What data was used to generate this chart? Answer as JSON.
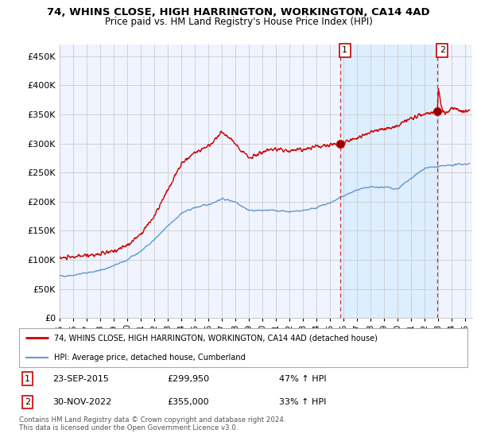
{
  "title": "74, WHINS CLOSE, HIGH HARRINGTON, WORKINGTON, CA14 4AD",
  "subtitle": "Price paid vs. HM Land Registry's House Price Index (HPI)",
  "ylim": [
    0,
    470000
  ],
  "yticks": [
    0,
    50000,
    100000,
    150000,
    200000,
    250000,
    300000,
    350000,
    400000,
    450000
  ],
  "xlim_start": 1995.0,
  "xlim_end": 2025.5,
  "legend_line1": "74, WHINS CLOSE, HIGH HARRINGTON, WORKINGTON, CA14 4AD (detached house)",
  "legend_line2": "HPI: Average price, detached house, Cumberland",
  "annotation1_date": "23-SEP-2015",
  "annotation1_price": "£299,950",
  "annotation1_pct": "47% ↑ HPI",
  "annotation2_date": "30-NOV-2022",
  "annotation2_price": "£355,000",
  "annotation2_pct": "33% ↑ HPI",
  "footer": "Contains HM Land Registry data © Crown copyright and database right 2024.\nThis data is licensed under the Open Government Licence v3.0.",
  "sale1_x": 2015.73,
  "sale1_y": 299950,
  "sale2_x": 2022.92,
  "sale2_y": 355000,
  "red_color": "#cc0000",
  "blue_color": "#6699cc",
  "shade_color": "#ddeeff",
  "dashed_color": "#cc0000",
  "grid_color": "#cccccc",
  "bg_color": "#f0f4ff"
}
